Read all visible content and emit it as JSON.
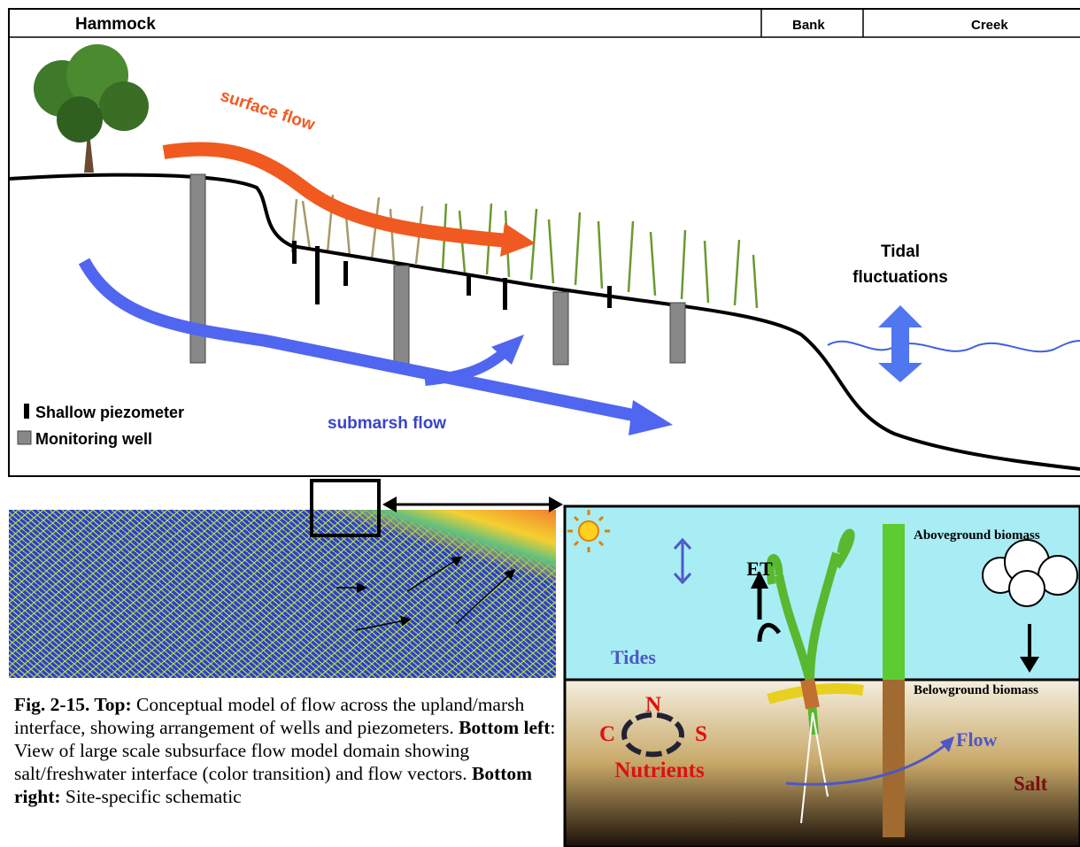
{
  "top_panel": {
    "zones": [
      "Hammock",
      "Bank",
      "Creek"
    ],
    "surface_flow": "surface flow",
    "tidal": [
      "Tidal",
      "fluctuations"
    ],
    "submarsh_flow": "submarsh flow",
    "legend": [
      "Shallow piezometer",
      "Monitoring well"
    ]
  },
  "bottom_right": {
    "aboveground": "Aboveground biomass",
    "belowground": "Belowground biomass",
    "et": "ET",
    "tides": "Tides",
    "flow": "Flow",
    "salt": "Salt",
    "nutrient_cycle": [
      "N",
      "C",
      "S"
    ],
    "nutrients": "Nutrients"
  },
  "caption": {
    "segments": [
      {
        "text": "Fig. 2-15.  Top:",
        "bold": true
      },
      {
        "text": " Conceptual model of flow across the upland/marsh interface, showing arrangement of wells and piezometers. ",
        "bold": false
      },
      {
        "text": "Bottom left",
        "bold": true
      },
      {
        "text": ": View of large scale subsurface flow model domain showing salt/freshwater interface (color transition) and flow vectors. ",
        "bold": false
      },
      {
        "text": "Bottom right:",
        "bold": true
      },
      {
        "text": " Site-specific schematic",
        "bold": false
      }
    ]
  }
}
